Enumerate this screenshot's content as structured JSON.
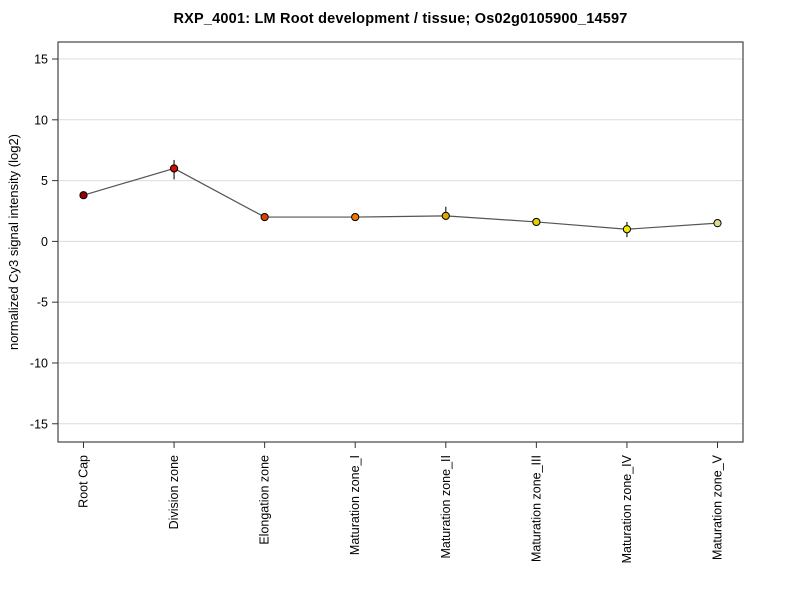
{
  "page": {
    "background": "#ffffff"
  },
  "chart_data": {
    "type": "line",
    "title": "RXP_4001: LM Root development / tissue; Os02g0105900_14597",
    "xlabel": "",
    "ylabel": "normalized Cy3 signal intensity (log2)",
    "categories": [
      "Root Cap",
      "Division zone",
      "Elongation zone",
      "Maturation zone_I",
      "Maturation zone_II",
      "Maturation zone_III",
      "Maturation zone_IV",
      "Maturation zone_V"
    ],
    "values": [
      3.8,
      6.0,
      2.0,
      2.0,
      2.1,
      1.6,
      1.0,
      1.5
    ],
    "errors_up": [
      0,
      0.7,
      0.1,
      0.25,
      0.75,
      0.15,
      0.6,
      0.2
    ],
    "errors_down": [
      0,
      0.9,
      0.1,
      0.25,
      0.3,
      0.15,
      0.65,
      0.2
    ],
    "point_colors": [
      "#990000",
      "#cc0f00",
      "#dd4400",
      "#ee7700",
      "#e2a600",
      "#e6cf00",
      "#f0ee00",
      "#dcdc8e"
    ],
    "yticks": [
      -15,
      -10,
      -5,
      0,
      5,
      10,
      15
    ],
    "ylim": [
      -16.5,
      16.4
    ],
    "grid": true,
    "legend": "none",
    "line_color": "#555555",
    "gridline_color": "#dcdcdc",
    "box_color": "#444444",
    "tick_color": "#333333",
    "errorbar_color": "#222222",
    "marker_outline": "#000000"
  }
}
